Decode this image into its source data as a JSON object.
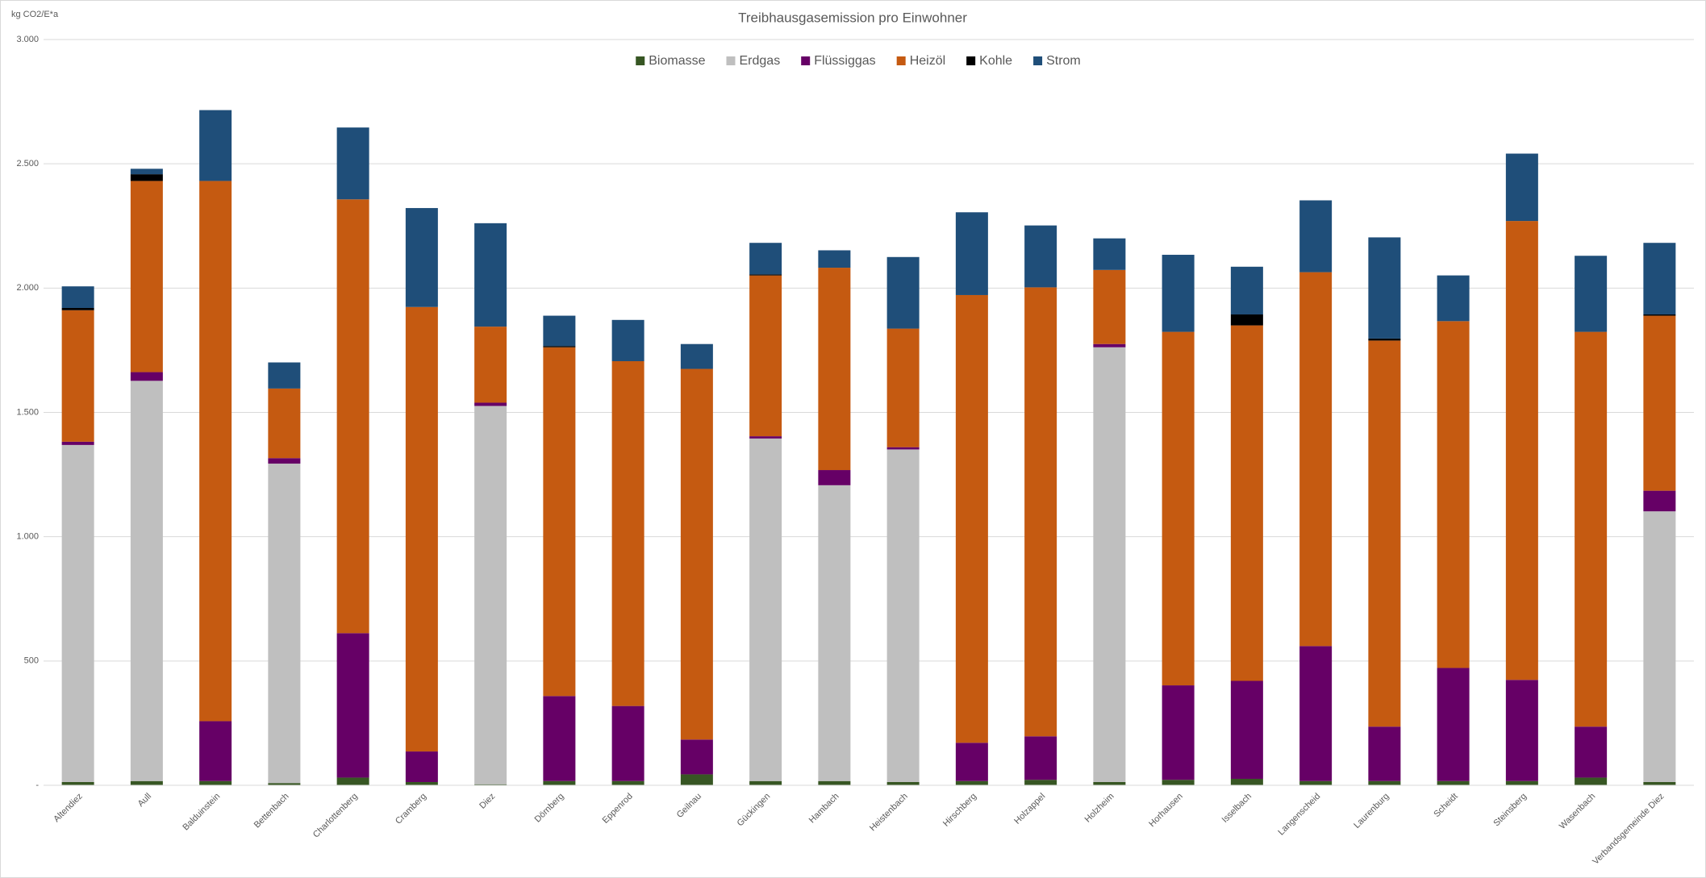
{
  "chart_data": {
    "type": "stacked-bar",
    "title": "Treibhausgasemission pro Einwohner",
    "y_label": "kg CO2/E*a",
    "categories": [
      "Altendiez",
      "Aull",
      "Balduinstein",
      "Bettenbach",
      "Charlottenberg",
      "Cramberg",
      "Diez",
      "Dörnberg",
      "Eppenrod",
      "Geilnau",
      "Gückingen",
      "Hambach",
      "Heistenbach",
      "Hirschberg",
      "Holzappel",
      "Holzheim",
      "Horhausen",
      "Isselbach",
      "Langenscheid",
      "Laurenburg",
      "Scheidt",
      "Steinsberg",
      "Wasenbach",
      "Verbandsgemeinde Diez"
    ],
    "series": [
      {
        "name": "Biomasse",
        "color": "#375623",
        "values": [
          13,
          17,
          17,
          9,
          31,
          13,
          4,
          17,
          17,
          44,
          17,
          17,
          13,
          17,
          22,
          13,
          22,
          26,
          17,
          17,
          17,
          17,
          31,
          13
        ]
      },
      {
        "name": "Erdgas",
        "color": "#bfbfbf",
        "values": [
          1356,
          1610,
          0,
          1285,
          0,
          0,
          1522,
          0,
          0,
          0,
          1378,
          1190,
          1338,
          0,
          0,
          1749,
          0,
          0,
          0,
          0,
          0,
          0,
          0,
          1089
        ]
      },
      {
        "name": "Flüssiggas",
        "color": "#660066",
        "values": [
          13,
          35,
          241,
          22,
          581,
          123,
          13,
          342,
          302,
          140,
          9,
          61,
          9,
          154,
          175,
          13,
          380,
          394,
          543,
          219,
          455,
          407,
          205,
          83
        ]
      },
      {
        "name": "Heizöl",
        "color": "#c55a11",
        "values": [
          529,
          769,
          2173,
          280,
          1745,
          1788,
          306,
          1403,
          1387,
          1491,
          647,
          814,
          477,
          1801,
          1806,
          298,
          1422,
          1430,
          1504,
          1553,
          1395,
          1846,
          1588,
          704
        ]
      },
      {
        "name": "Kohle",
        "color": "#000000",
        "values": [
          9,
          27,
          0,
          0,
          0,
          0,
          0,
          5,
          0,
          0,
          4,
          0,
          0,
          0,
          0,
          0,
          0,
          44,
          0,
          8,
          0,
          0,
          0,
          5
        ]
      },
      {
        "name": "Strom",
        "color": "#1f4e79",
        "values": [
          87,
          22,
          285,
          105,
          289,
          398,
          416,
          122,
          166,
          100,
          127,
          70,
          288,
          333,
          249,
          127,
          310,
          192,
          289,
          407,
          184,
          271,
          306,
          288
        ]
      }
    ],
    "ylim": [
      0,
      3000
    ],
    "yticks": [
      {
        "value": 0,
        "label": "-"
      },
      500,
      {
        "value": 1000,
        "label": "1.000"
      },
      {
        "value": 1500,
        "label": "1.500"
      },
      {
        "value": 2000,
        "label": "2.000"
      },
      {
        "value": 2500,
        "label": "2.500"
      },
      {
        "value": 3000,
        "label": "3.000"
      }
    ],
    "grid": true,
    "legend": "top"
  }
}
